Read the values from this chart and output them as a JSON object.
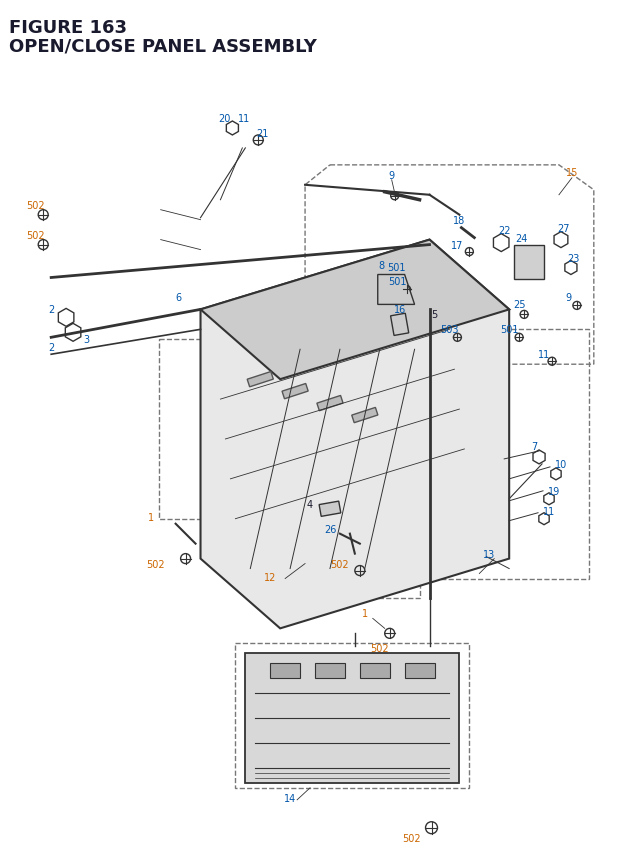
{
  "title_line1": "FIGURE 163",
  "title_line2": "OPEN/CLOSE PANEL ASSEMBLY",
  "bg_color": "#ffffff",
  "title_color": "#1a1a2e",
  "fig_width": 6.4,
  "fig_height": 8.62,
  "dpi": 100,
  "labels": {
    "orange": [
      "1",
      "1",
      "12",
      "13",
      "14",
      "15",
      "502",
      "502",
      "502",
      "502",
      "502",
      "502"
    ],
    "blue": [
      "2",
      "2",
      "3",
      "6",
      "7",
      "8",
      "9",
      "10",
      "11",
      "11",
      "16",
      "17",
      "18",
      "19",
      "20",
      "21",
      "22",
      "23",
      "24",
      "25",
      "26",
      "27",
      "501",
      "501",
      "503"
    ],
    "black": [
      "4",
      "5"
    ]
  }
}
